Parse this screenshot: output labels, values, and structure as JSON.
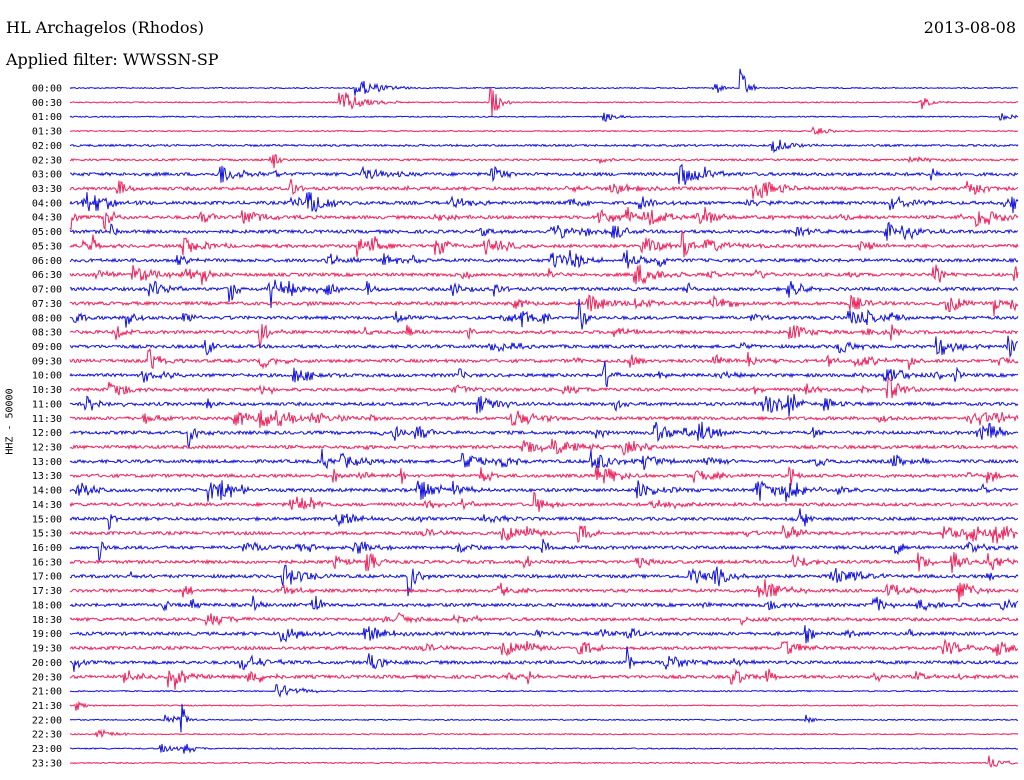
{
  "header": {
    "station": "HL Archagelos (Rhodos)",
    "date": "2013-08-08",
    "filter": "Applied filter: WWSSN-SP"
  },
  "channel_label": "HHZ - 50000",
  "colors": {
    "trace_a": "#1010e0",
    "trace_b": "#f0205a"
  },
  "trace_labels": [
    "00:00",
    "00:30",
    "01:00",
    "01:30",
    "02:00",
    "02:30",
    "03:00",
    "03:30",
    "04:00",
    "04:30",
    "05:00",
    "05:30",
    "06:00",
    "06:30",
    "07:00",
    "07:30",
    "08:00",
    "08:30",
    "09:00",
    "09:30",
    "10:00",
    "10:30",
    "11:00",
    "11:30",
    "12:00",
    "12:30",
    "13:00",
    "13:30",
    "14:00",
    "14:30",
    "15:00",
    "15:30",
    "16:00",
    "16:30",
    "17:00",
    "17:30",
    "18:00",
    "18:30",
    "19:00",
    "19:30",
    "20:00",
    "20:30",
    "21:00",
    "21:30",
    "22:00",
    "22:30",
    "23:00",
    "23:30"
  ]
}
